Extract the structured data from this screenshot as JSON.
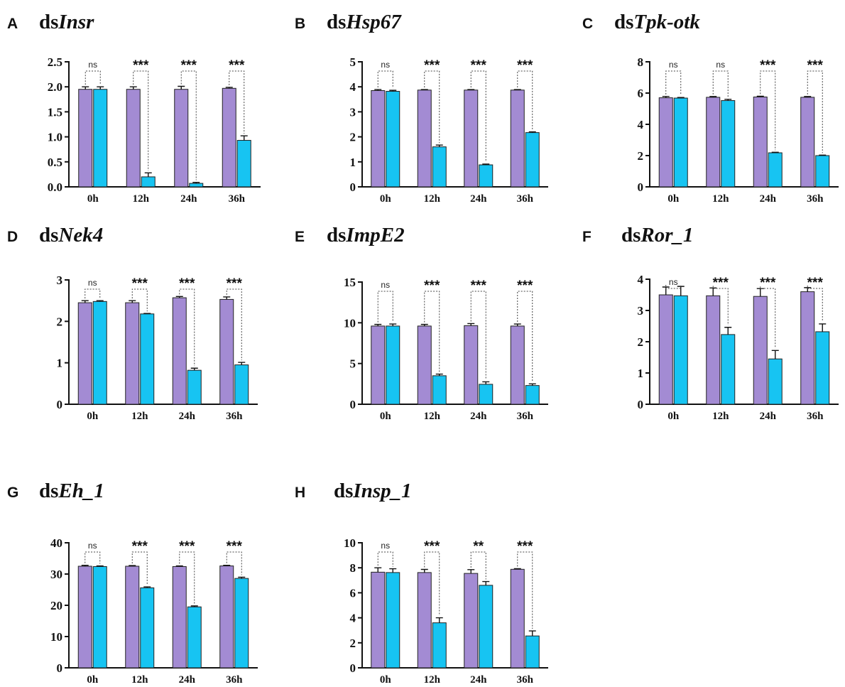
{
  "colors": {
    "control": "#a38bd3",
    "treatment": "#17c4f2"
  },
  "chart_data": [
    {
      "type": "bar",
      "letter": "A",
      "title_prefix": "ds",
      "title_gene": "Insr",
      "categories": [
        "0h",
        "12h",
        "24h",
        "36h"
      ],
      "series": [
        {
          "values": [
            1.95,
            1.95,
            1.95,
            1.97
          ],
          "errors": [
            0.05,
            0.05,
            0.06,
            0.02
          ]
        },
        {
          "values": [
            1.95,
            0.2,
            0.07,
            0.93
          ],
          "errors": [
            0.05,
            0.08,
            0.02,
            0.09
          ]
        }
      ],
      "ylim": [
        0,
        2.5
      ],
      "yticks": [
        0,
        0.5,
        1.0,
        1.5,
        2.0,
        2.5
      ],
      "ytick_labels": [
        "0.0",
        "0.5",
        "1.0",
        "1.5",
        "2.0",
        "2.5"
      ],
      "significance": [
        "ns",
        "***",
        "***",
        "***"
      ]
    },
    {
      "type": "bar",
      "letter": "B",
      "title_prefix": "ds",
      "title_gene": "Hsp67",
      "categories": [
        "0h",
        "12h",
        "24h",
        "36h"
      ],
      "series": [
        {
          "values": [
            3.85,
            3.87,
            3.87,
            3.87
          ],
          "errors": [
            0.04,
            0.02,
            0.02,
            0.02
          ]
        },
        {
          "values": [
            3.82,
            1.6,
            0.88,
            2.17
          ],
          "errors": [
            0.04,
            0.07,
            0.03,
            0.03
          ]
        }
      ],
      "ylim": [
        0,
        5
      ],
      "yticks": [
        0,
        1,
        2,
        3,
        4,
        5
      ],
      "ytick_labels": [
        "0",
        "1",
        "2",
        "3",
        "4",
        "5"
      ],
      "significance": [
        "ns",
        "***",
        "***",
        "***"
      ]
    },
    {
      "type": "bar",
      "letter": "C",
      "title_prefix": "ds",
      "title_gene": "Tpk-otk",
      "categories": [
        "0h",
        "12h",
        "24h",
        "36h"
      ],
      "series": [
        {
          "values": [
            5.7,
            5.73,
            5.75,
            5.73
          ],
          "errors": [
            0.08,
            0.05,
            0.05,
            0.05
          ]
        },
        {
          "values": [
            5.68,
            5.52,
            2.18,
            2.0
          ],
          "errors": [
            0.04,
            0.08,
            0.03,
            0.03
          ]
        }
      ],
      "ylim": [
        0,
        8
      ],
      "yticks": [
        0,
        2,
        4,
        6,
        8
      ],
      "ytick_labels": [
        "0",
        "2",
        "4",
        "6",
        "8"
      ],
      "significance": [
        "ns",
        "ns",
        "***",
        "***"
      ]
    },
    {
      "type": "bar",
      "letter": "D",
      "title_prefix": "ds",
      "title_gene": "Nek4",
      "categories": [
        "0h",
        "12h",
        "24h",
        "36h"
      ],
      "series": [
        {
          "values": [
            2.45,
            2.45,
            2.57,
            2.53
          ],
          "errors": [
            0.05,
            0.05,
            0.03,
            0.06
          ]
        },
        {
          "values": [
            2.48,
            2.18,
            0.82,
            0.95
          ],
          "errors": [
            0.02,
            0.01,
            0.05,
            0.06
          ]
        }
      ],
      "ylim": [
        0,
        3
      ],
      "yticks": [
        0,
        1,
        2,
        3
      ],
      "ytick_labels": [
        "0",
        "1",
        "2",
        "3"
      ],
      "significance": [
        "ns",
        "***",
        "***",
        "***"
      ]
    },
    {
      "type": "bar",
      "letter": "E",
      "title_prefix": "ds",
      "title_gene": "ImpE2",
      "categories": [
        "0h",
        "12h",
        "24h",
        "36h"
      ],
      "series": [
        {
          "values": [
            9.6,
            9.6,
            9.65,
            9.6
          ],
          "errors": [
            0.2,
            0.2,
            0.25,
            0.25
          ]
        },
        {
          "values": [
            9.6,
            3.5,
            2.45,
            2.3
          ],
          "errors": [
            0.25,
            0.2,
            0.3,
            0.2
          ]
        }
      ],
      "ylim": [
        0,
        15
      ],
      "yticks": [
        0,
        5,
        10,
        15
      ],
      "ytick_labels": [
        "0",
        "5",
        "10",
        "15"
      ],
      "significance": [
        "ns",
        "***",
        "***",
        "***"
      ]
    },
    {
      "type": "bar",
      "letter": "F",
      "title_prefix": "ds",
      "title_gene": "Ror_1",
      "categories": [
        "0h",
        "12h",
        "24h",
        "36h"
      ],
      "series": [
        {
          "values": [
            3.5,
            3.47,
            3.45,
            3.6
          ],
          "errors": [
            0.25,
            0.25,
            0.25,
            0.13
          ]
        },
        {
          "values": [
            3.47,
            2.23,
            1.45,
            2.32
          ],
          "errors": [
            0.3,
            0.23,
            0.27,
            0.25
          ]
        }
      ],
      "ylim": [
        0,
        4
      ],
      "yticks": [
        0,
        1,
        2,
        3,
        4
      ],
      "ytick_labels": [
        "0",
        "1",
        "2",
        "3",
        "4"
      ],
      "significance": [
        "ns",
        "***",
        "***",
        "***"
      ]
    },
    {
      "type": "bar",
      "letter": "G",
      "title_prefix": "ds",
      "title_gene": "Eh_1",
      "categories": [
        "0h",
        "12h",
        "24h",
        "36h"
      ],
      "series": [
        {
          "values": [
            32.5,
            32.5,
            32.4,
            32.6
          ],
          "errors": [
            0.3,
            0.2,
            0.2,
            0.2
          ]
        },
        {
          "values": [
            32.4,
            25.6,
            19.5,
            28.6
          ],
          "errors": [
            0.2,
            0.3,
            0.3,
            0.4
          ]
        }
      ],
      "ylim": [
        0,
        40
      ],
      "yticks": [
        0,
        10,
        20,
        30,
        40
      ],
      "ytick_labels": [
        "0",
        "10",
        "20",
        "30",
        "40"
      ],
      "significance": [
        "ns",
        "***",
        "***",
        "***"
      ]
    },
    {
      "type": "bar",
      "letter": "H",
      "title_prefix": "ds",
      "title_gene": "Insp_1",
      "categories": [
        "0h",
        "12h",
        "24h",
        "36h"
      ],
      "series": [
        {
          "values": [
            7.65,
            7.62,
            7.55,
            7.88
          ],
          "errors": [
            0.35,
            0.25,
            0.3,
            0.05
          ]
        },
        {
          "values": [
            7.62,
            3.6,
            6.6,
            2.55
          ],
          "errors": [
            0.3,
            0.4,
            0.3,
            0.4
          ]
        }
      ],
      "ylim": [
        0,
        10
      ],
      "yticks": [
        0,
        2,
        4,
        6,
        8,
        10
      ],
      "ytick_labels": [
        "0",
        "2",
        "4",
        "6",
        "8",
        "10"
      ],
      "significance": [
        "ns",
        "***",
        "**",
        "***"
      ]
    }
  ]
}
